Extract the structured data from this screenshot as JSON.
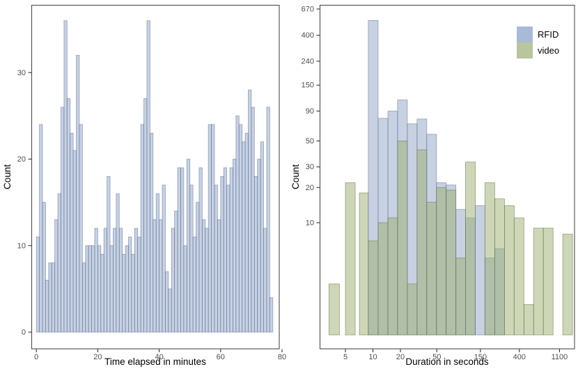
{
  "labels": {
    "left_ylabel": "Count",
    "left_xlabel": "Time elapsed in minutes",
    "right_ylabel": "Count",
    "right_xlabel": "Duration in seconds"
  },
  "legend": {
    "items": [
      {
        "label": "RFID",
        "color": "#a8bad6"
      },
      {
        "label": "video",
        "color": "#b8c59d"
      }
    ]
  },
  "colors": {
    "rfid_fill": "#8fa4c6",
    "rfid_stroke": "#5a6f94",
    "video_fill": "#9cad6e",
    "video_stroke": "#68794a",
    "panel_border": "#4b4b4b",
    "tick": "#333333"
  },
  "chart_data": [
    {
      "type": "bar",
      "subtype": "histogram",
      "title": "",
      "xlabel": "Time elapsed in minutes",
      "ylabel": "Count",
      "x_start": 0,
      "binwidth": 1,
      "values": [
        11,
        24,
        15,
        6,
        8,
        8,
        13,
        16,
        26,
        36,
        27,
        23,
        21,
        32,
        24,
        8,
        10,
        10,
        10,
        12,
        10,
        9,
        12,
        18,
        10,
        12,
        16,
        12,
        9,
        10,
        11,
        9,
        12,
        11,
        24,
        27,
        36,
        23,
        13,
        16,
        13,
        17,
        7,
        5,
        12,
        14,
        19,
        19,
        10,
        20,
        17,
        11,
        15,
        19,
        13,
        12,
        24,
        24,
        17,
        13,
        18,
        19,
        17,
        19,
        20,
        25,
        24,
        22,
        23,
        28,
        26,
        18,
        20,
        22,
        12,
        26,
        4
      ],
      "x_ticks": [
        "0",
        "20",
        "40",
        "60",
        "80"
      ],
      "y_ticks": [
        "0",
        "10",
        "20",
        "30"
      ],
      "xlim": [
        -2,
        80
      ],
      "ylim": [
        0,
        38
      ],
      "grid": "off",
      "legend_position": "none"
    },
    {
      "type": "bar",
      "subtype": "overlaid-histogram-log-log",
      "title": "",
      "xlabel": "Duration in seconds",
      "ylabel": "Count",
      "series_names": [
        "RFID",
        "video"
      ],
      "bins": [
        {
          "from": 3.3,
          "to": 4.3,
          "rfid": 0,
          "video": 3
        },
        {
          "from": 5.0,
          "to": 6.4,
          "rfid": 0,
          "video": 22
        },
        {
          "from": 7.1,
          "to": 8.9,
          "rfid": 0,
          "video": 18
        },
        {
          "from": 8.9,
          "to": 11.4,
          "rfid": 535,
          "video": 7
        },
        {
          "from": 11.4,
          "to": 14.6,
          "rfid": 78,
          "video": 10
        },
        {
          "from": 14.6,
          "to": 18.6,
          "rfid": 90,
          "video": 11
        },
        {
          "from": 18.6,
          "to": 23.8,
          "rfid": 112,
          "video": 50
        },
        {
          "from": 23.8,
          "to": 30.4,
          "rfid": 70,
          "video": 3
        },
        {
          "from": 30.4,
          "to": 38.8,
          "rfid": 77,
          "video": 42
        },
        {
          "from": 38.8,
          "to": 49.6,
          "rfid": 57,
          "video": 15
        },
        {
          "from": 49.6,
          "to": 63.3,
          "rfid": 22,
          "video": 20
        },
        {
          "from": 63.3,
          "to": 80.9,
          "rfid": 21,
          "video": 19
        },
        {
          "from": 80.9,
          "to": 103,
          "rfid": 13,
          "video": 5
        },
        {
          "from": 103,
          "to": 132,
          "rfid": 11,
          "video": 33
        },
        {
          "from": 132,
          "to": 168,
          "rfid": 14,
          "video": 0
        },
        {
          "from": 168,
          "to": 215,
          "rfid": 5,
          "video": 22
        },
        {
          "from": 215,
          "to": 275,
          "rfid": 6,
          "video": 16
        },
        {
          "from": 275,
          "to": 351,
          "rfid": 0,
          "video": 14
        },
        {
          "from": 351,
          "to": 449,
          "rfid": 0,
          "video": 11
        },
        {
          "from": 449,
          "to": 573,
          "rfid": 0,
          "video": 2
        },
        {
          "from": 573,
          "to": 732,
          "rfid": 0,
          "video": 9
        },
        {
          "from": 732,
          "to": 936,
          "rfid": 0,
          "video": 9
        },
        {
          "from": 1195,
          "to": 1527,
          "rfid": 0,
          "video": 8
        }
      ],
      "x_ticks": [
        "5",
        "10",
        "20",
        "50",
        "150",
        "400",
        "1100"
      ],
      "y_ticks": [
        "670",
        "400",
        "240",
        "150",
        "90",
        "50",
        "30",
        "20",
        "10"
      ],
      "x_scale": "log",
      "y_scale": "log",
      "grid": "off",
      "legend_position": "top-right"
    }
  ]
}
